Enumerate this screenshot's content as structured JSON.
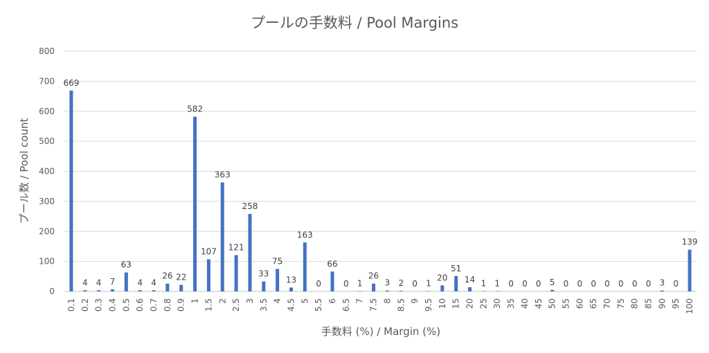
{
  "chart_data": {
    "type": "bar",
    "title": "プールの手数料 / Pool Margins",
    "xlabel": "手数料 (%) / Margin (%)",
    "ylabel": "プール数 / Pool count",
    "ylim": [
      0,
      800
    ],
    "yticks": [
      0,
      100,
      200,
      300,
      400,
      500,
      600,
      700,
      800
    ],
    "grid": true,
    "bar_color": "#4472c4",
    "categories": [
      "0.1",
      "0.2",
      "0.3",
      "0.4",
      "0.5",
      "0.6",
      "0.7",
      "0.8",
      "0.9",
      "1",
      "1.5",
      "2",
      "2.5",
      "3",
      "3.5",
      "4",
      "4.5",
      "5",
      "5.5",
      "6",
      "6.5",
      "7",
      "7.5",
      "8",
      "8.5",
      "9",
      "9.5",
      "10",
      "15",
      "20",
      "25",
      "30",
      "35",
      "40",
      "45",
      "50",
      "55",
      "60",
      "65",
      "70",
      "75",
      "80",
      "85",
      "90",
      "95",
      "100"
    ],
    "values": [
      669,
      4,
      4,
      7,
      63,
      4,
      4,
      26,
      22,
      582,
      107,
      363,
      121,
      258,
      33,
      75,
      13,
      163,
      0,
      66,
      0,
      1,
      26,
      3,
      2,
      0,
      1,
      20,
      51,
      14,
      1,
      1,
      0,
      0,
      0,
      5,
      0,
      0,
      0,
      0,
      0,
      0,
      0,
      3,
      0,
      139
    ]
  }
}
